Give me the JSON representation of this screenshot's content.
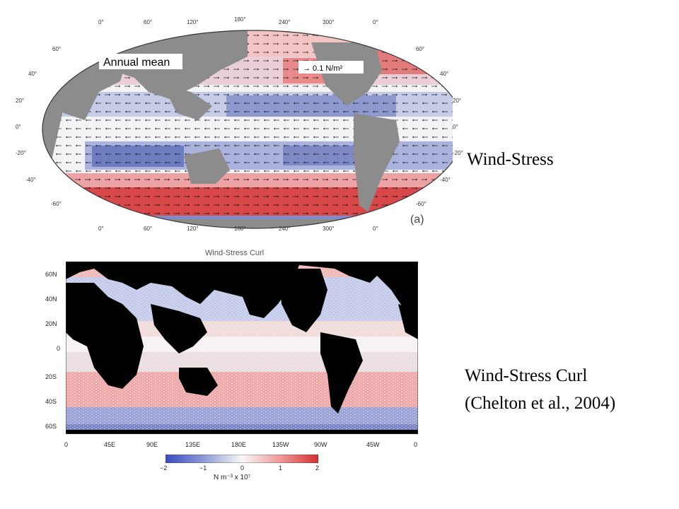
{
  "top_map": {
    "panel_title": "Annual mean",
    "scale_arrow_label": "→ 0.1 N/m²",
    "panel_letter": "(a)",
    "lon_ticks_top": [
      "0°",
      "60°",
      "120°",
      "180°",
      "240°",
      "300°",
      "0°"
    ],
    "lon_ticks_bottom": [
      "0°",
      "60°",
      "120°",
      "180°",
      "240°",
      "300°",
      "0°"
    ],
    "lat_ticks_left": [
      "60°",
      "40°",
      "20°",
      "0°",
      "-20°",
      "-40°",
      "-60°"
    ],
    "lat_ticks_right": [
      "60°",
      "40°",
      "20°",
      "0°",
      "-20°",
      "-40°",
      "-60°"
    ]
  },
  "bottom_map": {
    "title": "Wind-Stress Curl",
    "lat_ticks": [
      "60N",
      "40N",
      "20N",
      "0",
      "20S",
      "40S",
      "60S"
    ],
    "lon_ticks": [
      "0",
      "45E",
      "90E",
      "135E",
      "180E",
      "135W",
      "90W",
      "45W",
      "0"
    ],
    "colorbar": {
      "ticks": [
        "−2",
        "−1",
        "0",
        "1",
        "2"
      ],
      "units": "N m⁻³ x 10⁷",
      "colors": {
        "neg": "#3b4cc0",
        "mid": "#f7f7f7",
        "pos": "#d62f2f"
      }
    }
  },
  "labels": {
    "wind_stress": "Wind-Stress",
    "curl_line1": "Wind-Stress Curl",
    "curl_line2": "(Chelton et al., 2004)"
  },
  "colors": {
    "land_top": "#8c8c8c",
    "land_bottom": "#000000",
    "positive": "#e05a5a",
    "negative": "#5a6bb5"
  }
}
